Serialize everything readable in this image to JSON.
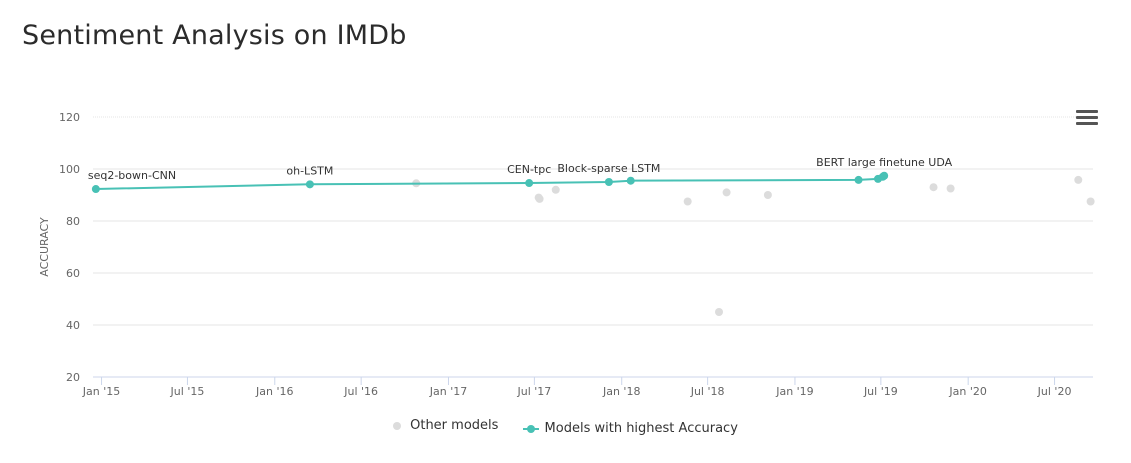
{
  "title": "Sentiment Analysis on IMDb",
  "legend": {
    "other": "Other models",
    "best": "Models with highest Accuracy"
  },
  "colors": {
    "best": "#48c1b5",
    "other": "#dcdcdc",
    "grid": "#e6e6e6",
    "axis": "#ccd6eb",
    "tick_text": "#666666",
    "label_text": "#333333"
  },
  "icons": {
    "menu": "hamburger-menu-icon"
  },
  "chart_data": {
    "type": "scatter",
    "ylabel": "ACCURACY",
    "ylim": [
      20,
      120
    ],
    "yticks": [
      20,
      40,
      60,
      80,
      100,
      120
    ],
    "xlim": [
      "2014-12-14",
      "2020-09-20"
    ],
    "xticks": [
      {
        "label": "Jan '15",
        "date": "2015-01-01"
      },
      {
        "label": "Jul '15",
        "date": "2015-07-01"
      },
      {
        "label": "Jan '16",
        "date": "2016-01-01"
      },
      {
        "label": "Jul '16",
        "date": "2016-07-01"
      },
      {
        "label": "Jan '17",
        "date": "2017-01-01"
      },
      {
        "label": "Jul '17",
        "date": "2017-07-01"
      },
      {
        "label": "Jan '18",
        "date": "2018-01-01"
      },
      {
        "label": "Jul '18",
        "date": "2018-07-01"
      },
      {
        "label": "Jan '19",
        "date": "2019-01-01"
      },
      {
        "label": "Jul '19",
        "date": "2019-07-01"
      },
      {
        "label": "Jan '20",
        "date": "2020-01-01"
      },
      {
        "label": "Jul '20",
        "date": "2020-07-01"
      }
    ],
    "grid": true,
    "legend_position": "bottom",
    "series": [
      {
        "name": "Other models",
        "points": [
          {
            "date": "2016-10-25",
            "y": 94.5
          },
          {
            "date": "2017-07-10",
            "y": 89.0
          },
          {
            "date": "2017-07-12",
            "y": 88.5
          },
          {
            "date": "2017-08-15",
            "y": 92.0
          },
          {
            "date": "2018-05-20",
            "y": 87.5
          },
          {
            "date": "2018-07-25",
            "y": 45.0
          },
          {
            "date": "2018-08-10",
            "y": 91.0
          },
          {
            "date": "2018-11-05",
            "y": 90.0
          },
          {
            "date": "2019-10-20",
            "y": 93.0
          },
          {
            "date": "2019-11-25",
            "y": 92.5
          },
          {
            "date": "2020-08-20",
            "y": 95.8
          },
          {
            "date": "2020-09-15",
            "y": 87.5
          }
        ]
      },
      {
        "name": "Models with highest Accuracy",
        "points": [
          {
            "date": "2014-12-20",
            "y": 92.3,
            "label": "seq2-bown-CNN"
          },
          {
            "date": "2016-03-15",
            "y": 94.1,
            "label": "oh-LSTM"
          },
          {
            "date": "2017-06-20",
            "y": 94.6,
            "label": "CEN-tpc"
          },
          {
            "date": "2017-12-05",
            "y": 95.0,
            "label": "Block-sparse LSTM"
          },
          {
            "date": "2018-01-20",
            "y": 95.5
          },
          {
            "date": "2019-05-15",
            "y": 95.8
          },
          {
            "date": "2019-06-25",
            "y": 96.2
          },
          {
            "date": "2019-07-05",
            "y": 97.0
          },
          {
            "date": "2019-07-08",
            "y": 97.4,
            "label": "BERT large finetune UDA"
          }
        ]
      }
    ]
  }
}
